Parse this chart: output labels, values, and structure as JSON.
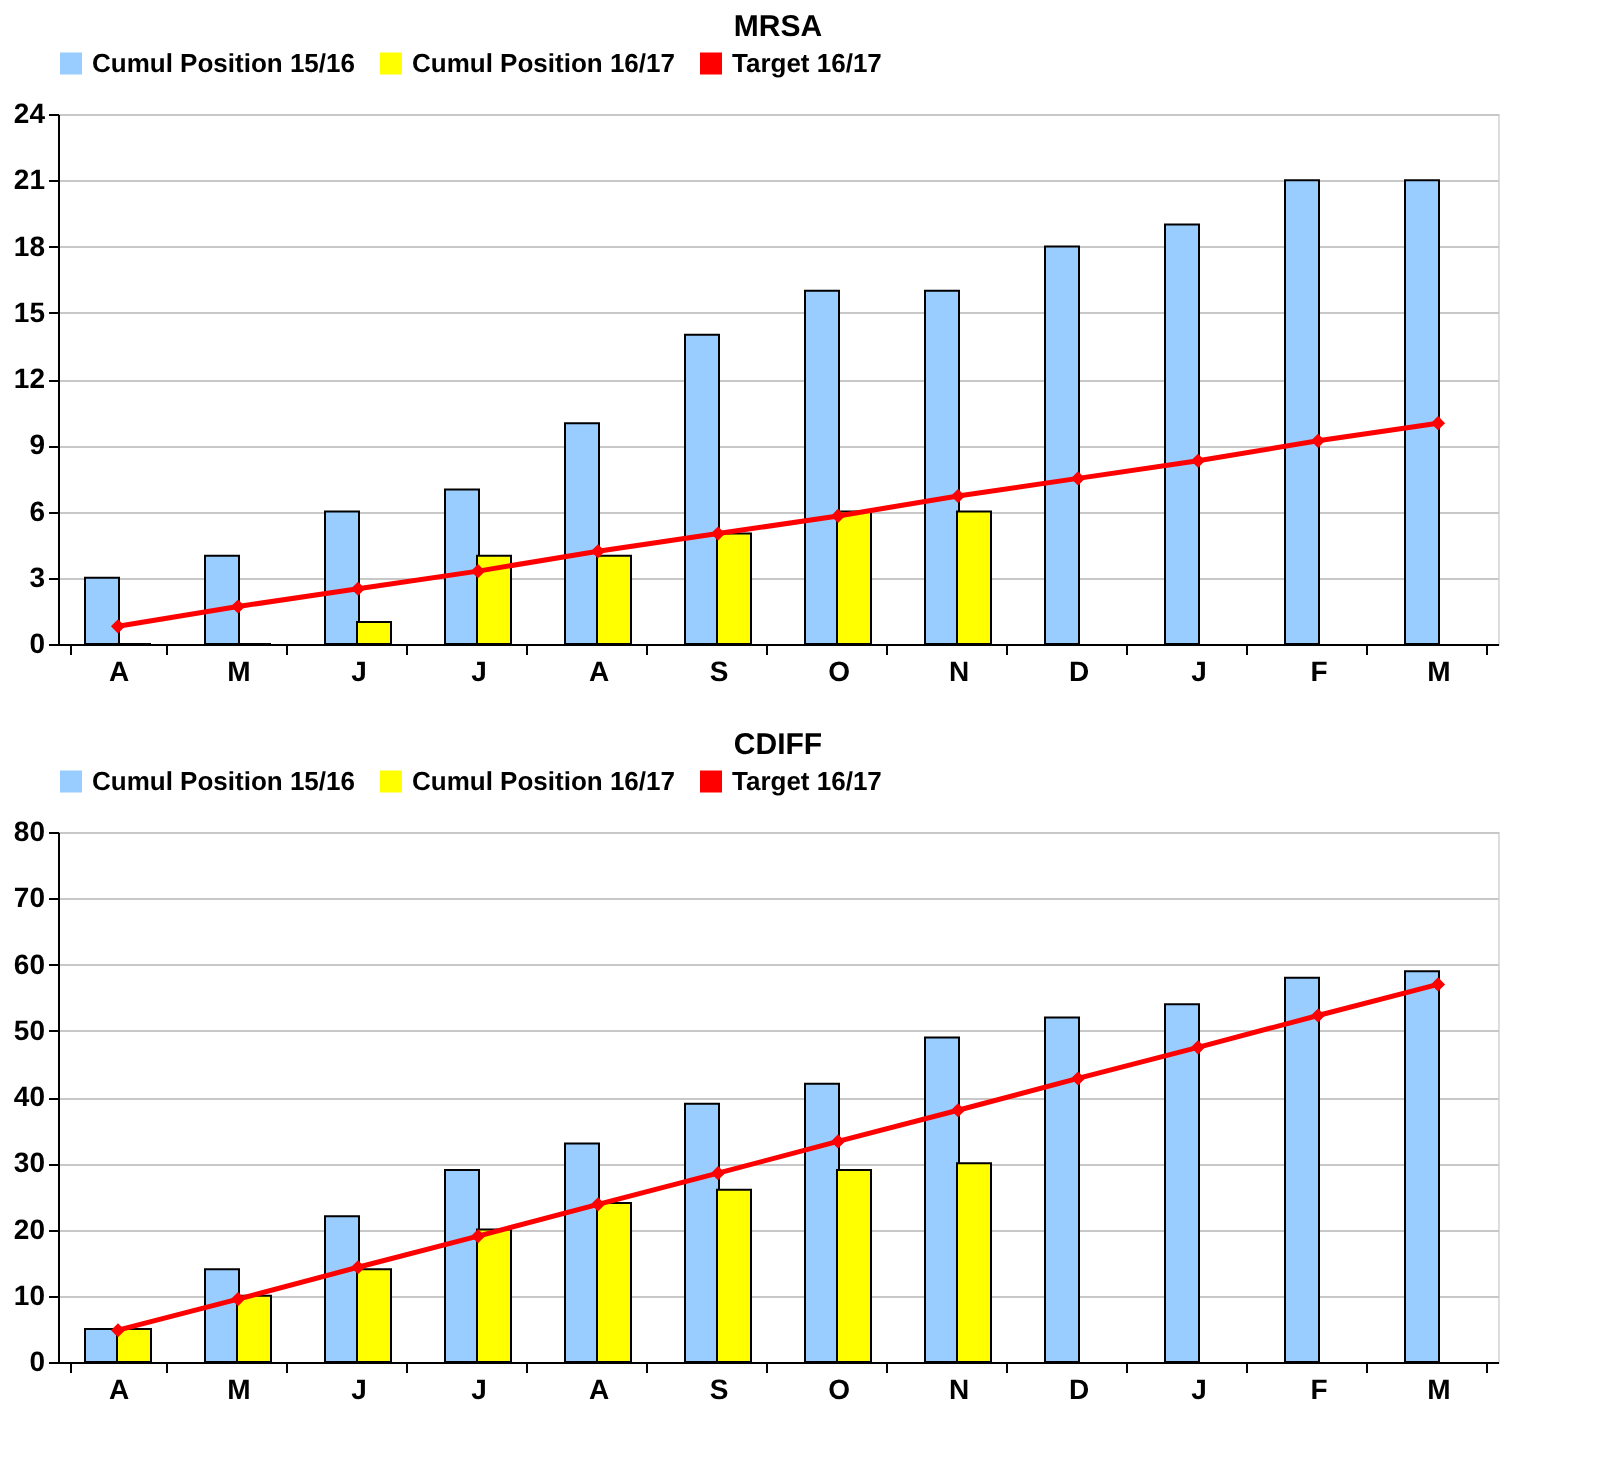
{
  "chart_data": [
    {
      "type": "bar",
      "title": "MRSA",
      "categories": [
        "A",
        "M",
        "J",
        "J",
        "A",
        "S",
        "O",
        "N",
        "D",
        "J",
        "F",
        "M"
      ],
      "series": [
        {
          "name": "Cumul Position 15/16",
          "color": "#99ccff",
          "values": [
            3,
            4,
            6,
            7,
            10,
            14,
            16,
            16,
            18,
            19,
            21,
            21
          ]
        },
        {
          "name": "Cumul Position 16/17",
          "color": "#ffff00",
          "values": [
            0,
            0,
            1,
            4,
            4,
            5,
            6,
            6,
            null,
            null,
            null,
            null
          ]
        },
        {
          "name": "Target 16/17",
          "type": "line",
          "color": "#ff0000",
          "marker": "diamond",
          "values": [
            0.8,
            1.7,
            2.5,
            3.3,
            4.2,
            5,
            5.8,
            6.7,
            7.5,
            8.3,
            9.2,
            10
          ]
        }
      ],
      "ylim": [
        0,
        24
      ],
      "yticks": [
        0,
        3,
        6,
        9,
        12,
        15,
        18,
        21,
        24
      ],
      "grid": "y",
      "legend": "top"
    },
    {
      "type": "bar",
      "title": "CDIFF",
      "categories": [
        "A",
        "M",
        "J",
        "J",
        "A",
        "S",
        "O",
        "N",
        "D",
        "J",
        "F",
        "M"
      ],
      "series": [
        {
          "name": "Cumul Position 15/16",
          "color": "#99ccff",
          "values": [
            5,
            14,
            22,
            29,
            33,
            39,
            42,
            49,
            52,
            54,
            58,
            59
          ]
        },
        {
          "name": "Cumul Position 16/17",
          "color": "#ffff00",
          "values": [
            5,
            10,
            14,
            20,
            24,
            26,
            29,
            30,
            null,
            null,
            null,
            null
          ]
        },
        {
          "name": "Target 16/17",
          "type": "line",
          "color": "#ff0000",
          "marker": "diamond",
          "values": [
            4.8,
            9.5,
            14.3,
            19,
            23.8,
            28.5,
            33.3,
            38,
            42.8,
            47.5,
            52.3,
            57
          ]
        }
      ],
      "ylim": [
        0,
        80
      ],
      "yticks": [
        0,
        10,
        20,
        30,
        40,
        50,
        60,
        70,
        80
      ],
      "grid": "y",
      "legend": "top"
    }
  ]
}
